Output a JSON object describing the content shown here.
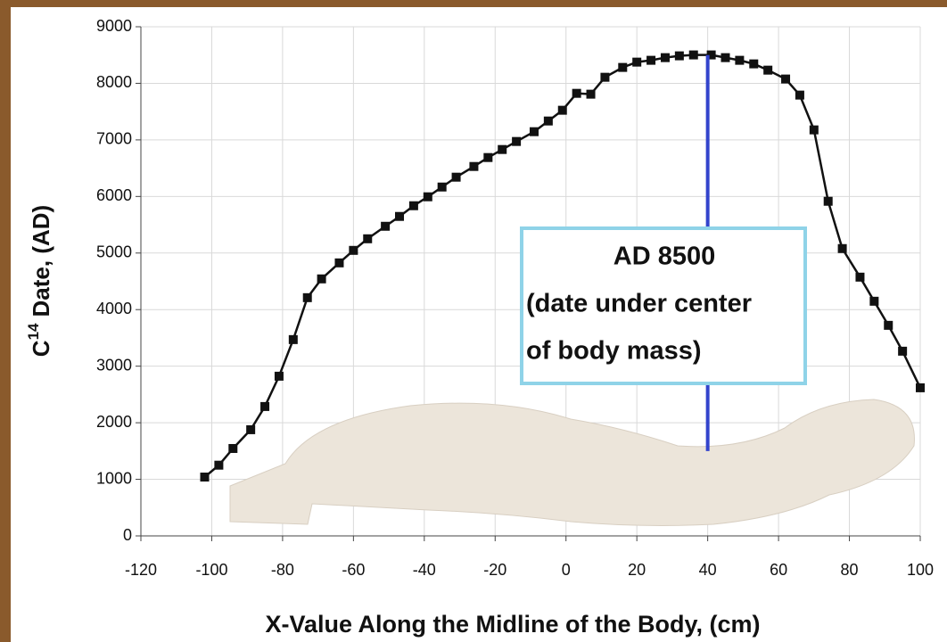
{
  "chart_data": {
    "type": "line",
    "xlabel": "X-Value Along the Midline of the Body, (cm)",
    "ylabel": {
      "base": "C",
      "sup": "14",
      "rest": "Date, (AD)"
    },
    "x": [
      -102,
      -98,
      -94,
      -89,
      -85,
      -81,
      -77,
      -73,
      -69,
      -64,
      -60,
      -56,
      -51,
      -47,
      -43,
      -39,
      -35,
      -31,
      -26,
      -22,
      -18,
      -14,
      -9,
      -5,
      -1,
      3,
      7,
      11,
      16,
      20,
      24,
      28,
      32,
      36,
      41,
      45,
      49,
      53,
      57,
      62,
      66,
      70,
      74,
      78,
      83,
      87,
      91,
      95,
      100
    ],
    "values": [
      1040,
      1250,
      1545,
      1877,
      2287,
      2823,
      3470,
      4211,
      4543,
      4826,
      5047,
      5252,
      5473,
      5647,
      5836,
      5994,
      6167,
      6341,
      6530,
      6688,
      6830,
      6972,
      7145,
      7334,
      7524,
      7823,
      7808,
      8107,
      8281,
      8375,
      8407,
      8454,
      8486,
      8502,
      8502,
      8454,
      8407,
      8344,
      8233,
      8076,
      7792,
      7177,
      5915,
      5079,
      4574,
      4148,
      3722,
      3265,
      2618
    ],
    "color": "#111111",
    "xlim": [
      -120,
      100
    ],
    "xticks": [
      -120,
      -100,
      -80,
      -60,
      -40,
      -20,
      0,
      20,
      40,
      60,
      80,
      100
    ],
    "ylim": [
      0,
      9000
    ],
    "yticks": [
      0,
      1000,
      2000,
      3000,
      4000,
      5000,
      6000,
      7000,
      8000,
      9000
    ],
    "grid": true,
    "annotation": {
      "x": 40,
      "y": [
        1500,
        8500
      ],
      "color": "#3344cc",
      "box_color": "#8fd3e8",
      "lines": [
        "AD 8500",
        "(date under center",
        "of body mass)"
      ]
    }
  }
}
